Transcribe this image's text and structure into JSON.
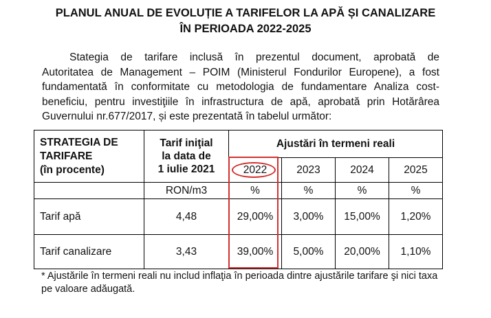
{
  "document": {
    "title_line1": "PLANUL ANUAL DE EVOLUȚIE A TARIFELOR LA APĂ ȘI CANALIZARE",
    "title_line2": "ÎN PERIOADA 2022-2025",
    "paragraph_lines": [
      "Stategia de tarifare inclusă în prezentul document, aprobată de",
      "Autoritatea de Management – POIM (Ministerul Fondurilor Europene), a fost",
      "fundamentată în conformitate cu metodologia de fundamentare Analiza cost-",
      "beneficiu, pentru investiţiile în infrastructura de apă, aprobată prin Hotărârea",
      "Guvernului nr.677/2017, și este prezentată în tabelul următor:"
    ],
    "table": {
      "strategy_header": [
        "STRATEGIA DE",
        "TARIFARE",
        "(în procente)"
      ],
      "initial_header": [
        "Tarif iniţial",
        "la data de",
        "1 iulie 2021"
      ],
      "adjustments_header": "Ajustări în termeni reali",
      "years": [
        "2022",
        "2023",
        "2024",
        "2025"
      ],
      "initial_unit": "RON/m3",
      "year_units": [
        "%",
        "%",
        "%",
        "%"
      ],
      "rows": [
        {
          "label": "Tarif apă",
          "initial": "4,48",
          "values": [
            "29,00%",
            "3,00%",
            "15,00%",
            "1,20%"
          ]
        },
        {
          "label": "Tarif canalizare",
          "initial": "3,43",
          "values": [
            "39,00%",
            "5,00%",
            "20,00%",
            "1,10%"
          ]
        }
      ]
    },
    "footnote_lines": [
      "* Ajustările în termeni reali nu includ inflaţia în perioada dintre ajustările tarifare şi nici taxa",
      "pe valoare adăugată."
    ],
    "highlight_color": "#d32f2f"
  }
}
